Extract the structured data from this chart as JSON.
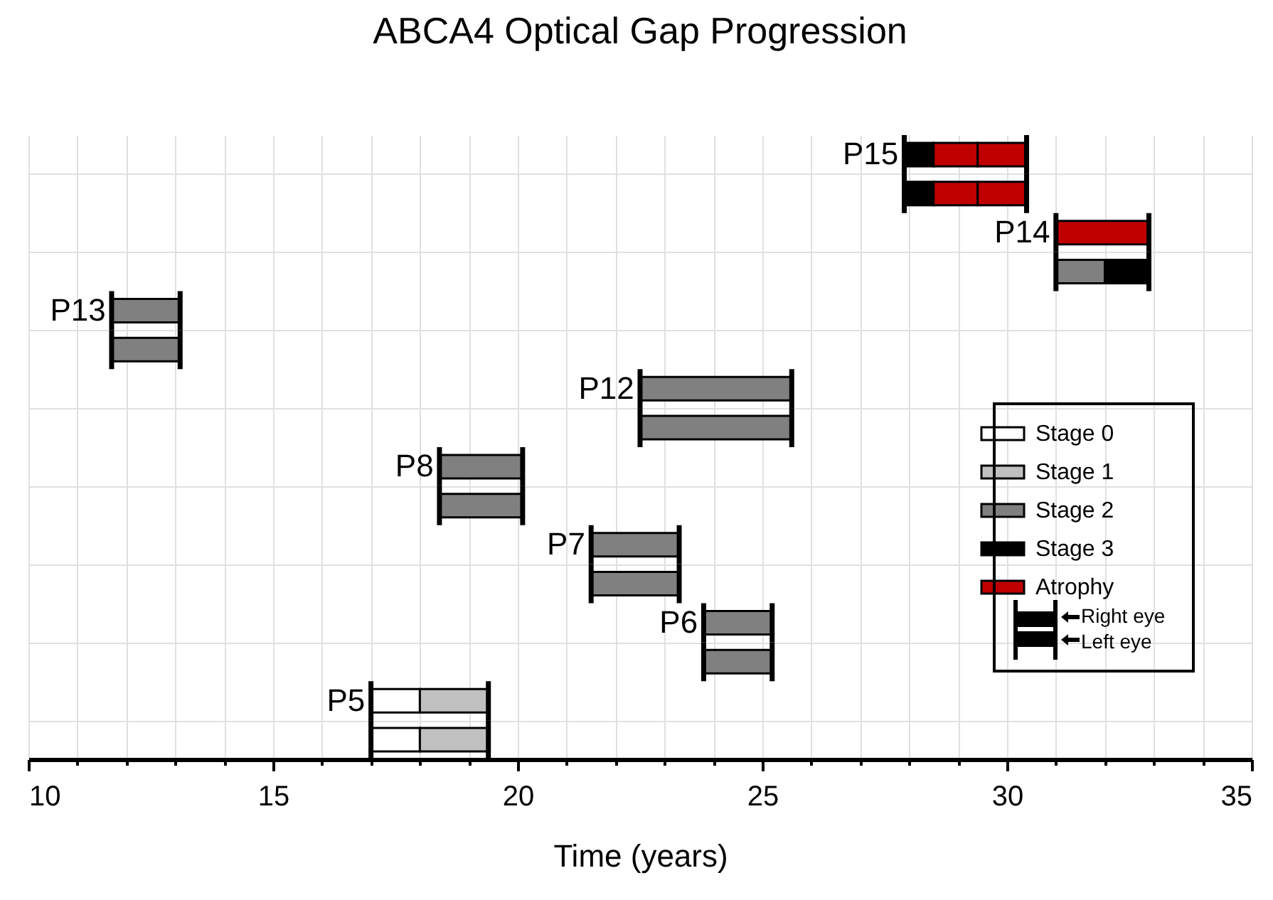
{
  "chart_data": {
    "type": "bar",
    "title": "ABCA4 Optical Gap Progression",
    "xlabel": "Time (years)",
    "orientation": "horizontal",
    "categories": [
      "P15",
      null,
      "P14",
      null,
      "P13",
      null,
      "P12",
      null,
      "P8",
      null,
      "P7",
      null,
      "P6",
      null,
      "P5",
      null
    ],
    "series": [
      {
        "name": "Stage 0",
        "color": "#ffffff",
        "base": [
          null,
          null,
          null,
          null,
          null,
          null,
          null,
          null,
          null,
          null,
          null,
          null,
          null,
          null,
          17.0,
          17.0
        ],
        "values": [
          null,
          null,
          null,
          null,
          null,
          null,
          null,
          null,
          null,
          null,
          null,
          null,
          null,
          null,
          1.0,
          1.0
        ]
      },
      {
        "name": "Stage 1",
        "color": "#c0c0c0",
        "base": [
          null,
          null,
          null,
          null,
          null,
          null,
          null,
          null,
          null,
          null,
          null,
          null,
          null,
          null,
          18.0,
          18.0
        ],
        "values": [
          null,
          null,
          null,
          null,
          null,
          null,
          null,
          null,
          null,
          null,
          null,
          null,
          null,
          null,
          1.4,
          1.4
        ]
      },
      {
        "name": "Stage 2",
        "color": "#808080",
        "base": [
          null,
          null,
          null,
          31.0,
          11.7,
          11.7,
          22.5,
          22.5,
          18.4,
          18.4,
          21.5,
          21.5,
          23.8,
          23.8,
          null,
          null
        ],
        "values": [
          null,
          null,
          null,
          1.0,
          1.4,
          1.4,
          3.1,
          3.1,
          1.7,
          1.7,
          1.8,
          1.8,
          1.4,
          1.4,
          null,
          null
        ]
      },
      {
        "name": "Stage 3",
        "color": "#000000",
        "base": [
          27.9,
          27.9,
          null,
          32.0,
          null,
          null,
          null,
          null,
          null,
          null,
          null,
          null,
          null,
          null,
          null,
          null
        ],
        "values": [
          0.6,
          0.6,
          null,
          0.9,
          null,
          null,
          null,
          null,
          null,
          null,
          null,
          null,
          null,
          null,
          null,
          null
        ]
      },
      {
        "name": "Atrophy",
        "color": "#c00000",
        "base": [
          28.5,
          28.5,
          31.0,
          null,
          null,
          null,
          null,
          null,
          null,
          null,
          null,
          null,
          null,
          null,
          null,
          null
        ],
        "values": [
          0.9,
          0.9,
          1.9,
          null,
          null,
          null,
          null,
          null,
          null,
          null,
          null,
          null,
          null,
          null,
          null,
          null
        ]
      },
      {
        "color": "#c00000",
        "base": [
          29.4,
          29.4,
          null,
          null,
          null,
          null,
          null,
          null,
          null,
          null,
          null,
          null,
          null,
          null,
          null,
          null
        ],
        "values": [
          1.0,
          1.0,
          null,
          null,
          null,
          null,
          null,
          null,
          null,
          null,
          null,
          null,
          null,
          null,
          null,
          null
        ]
      }
    ],
    "xlim": [
      10,
      35
    ],
    "xticks": [
      10,
      {
        "value": 11,
        "label": null
      },
      {
        "value": 12,
        "label": null
      },
      {
        "value": 13,
        "label": null
      },
      {
        "value": 14,
        "label": null
      },
      15,
      {
        "value": 16,
        "label": null
      },
      {
        "value": 17,
        "label": null
      },
      {
        "value": 18,
        "label": null
      },
      {
        "value": 19,
        "label": null
      },
      20,
      {
        "value": 21,
        "label": null
      },
      {
        "value": 22,
        "label": null
      },
      {
        "value": 23,
        "label": null
      },
      {
        "value": 24,
        "label": null
      },
      25,
      {
        "value": 26,
        "label": null
      },
      {
        "value": 27,
        "label": null
      },
      {
        "value": 28,
        "label": null
      },
      {
        "value": 29,
        "label": null
      },
      30,
      {
        "value": 31,
        "label": null
      },
      {
        "value": 32,
        "label": null
      },
      {
        "value": 33,
        "label": null
      },
      {
        "value": 34,
        "label": null
      },
      35
    ],
    "grid": true,
    "legend": "right",
    "annotations": [
      "Right eye",
      "Left eye"
    ]
  }
}
